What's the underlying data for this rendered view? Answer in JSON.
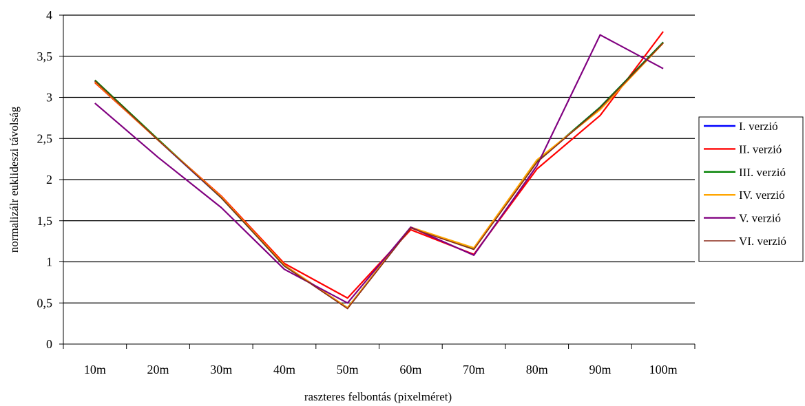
{
  "chart_data": {
    "type": "line",
    "title": "",
    "xlabel": "raszteres felbontás (pixelméret)",
    "ylabel": "normalizálr euklideszi távolság",
    "categories": [
      "10m",
      "20m",
      "30m",
      "40m",
      "50m",
      "60m",
      "70m",
      "80m",
      "90m",
      "100m"
    ],
    "ylim": [
      0,
      4
    ],
    "yticks": [
      0,
      0.5,
      1,
      1.5,
      2,
      2.5,
      3,
      3.5,
      4
    ],
    "ytick_labels": [
      "0",
      "0,5",
      "1",
      "1,5",
      "2",
      "2,5",
      "3",
      "3,5",
      "4"
    ],
    "grid": true,
    "legend_position": "right",
    "series": [
      {
        "name": "I. verzió",
        "color": "#0000ff",
        "values": [
          3.2,
          2.48,
          1.78,
          0.96,
          0.44,
          1.42,
          1.16,
          2.22,
          2.88,
          3.67
        ]
      },
      {
        "name": "II. verzió",
        "color": "#ff0000",
        "values": [
          3.18,
          2.48,
          1.8,
          0.98,
          0.56,
          1.39,
          1.09,
          2.13,
          2.78,
          3.8
        ]
      },
      {
        "name": "III. verzió",
        "color": "#008000",
        "values": [
          3.21,
          2.49,
          1.78,
          0.95,
          0.44,
          1.42,
          1.16,
          2.22,
          2.88,
          3.67
        ]
      },
      {
        "name": "IV. verzió",
        "color": "#ffa500",
        "values": [
          3.19,
          2.48,
          1.79,
          0.96,
          0.44,
          1.42,
          1.17,
          2.24,
          2.85,
          3.66
        ]
      },
      {
        "name": "V. verzió",
        "color": "#800080",
        "values": [
          2.93,
          2.27,
          1.66,
          0.91,
          0.5,
          1.42,
          1.08,
          2.17,
          3.76,
          3.35
        ]
      },
      {
        "name": "VI. verzió",
        "color": "#8b2a1a",
        "values": [
          3.2,
          2.48,
          1.78,
          0.95,
          0.43,
          1.41,
          1.15,
          2.21,
          2.87,
          3.66
        ]
      }
    ]
  }
}
